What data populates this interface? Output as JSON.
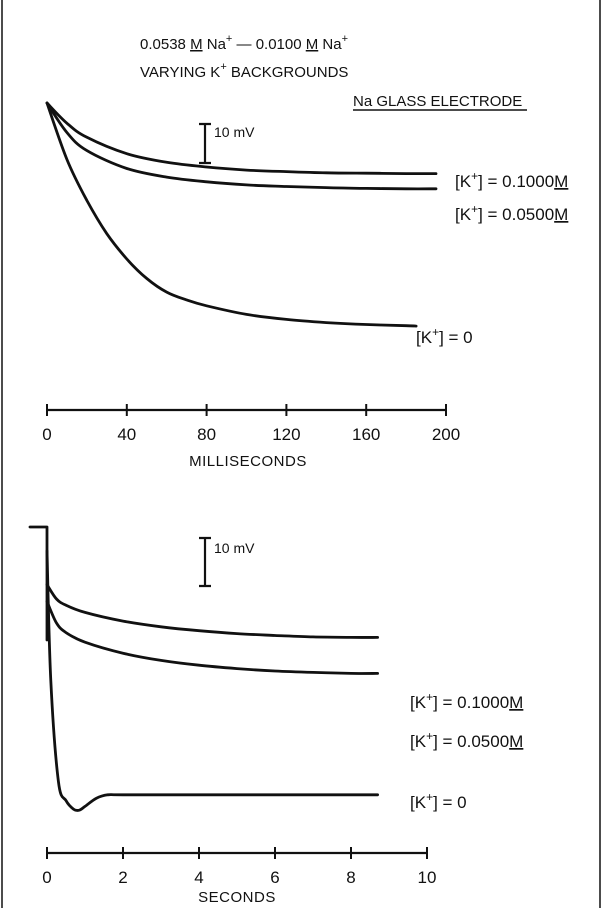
{
  "chart_data": [
    {
      "type": "line",
      "title_line1": "0.0538 M Na⁺ — 0.0100 M Na⁺",
      "title_line2": "VARYING K⁺ BACKGROUNDS",
      "annotation": "Na GLASS ELECTRODE",
      "scale_bar_label": "10 mV",
      "xlabel": "MILLISECONDS",
      "ylabel": "",
      "xlim": [
        0,
        200
      ],
      "x_ticks": [
        0,
        40,
        80,
        120,
        160,
        200
      ],
      "grid": false,
      "series": [
        {
          "name": "[K⁺] = 0.1000 M",
          "x": [
            0,
            10,
            20,
            40,
            60,
            80,
            100,
            120,
            140,
            160,
            180,
            195
          ],
          "y": [
            0,
            -5.2,
            -8.8,
            -13.0,
            -15.2,
            -16.4,
            -17.2,
            -17.6,
            -17.9,
            -18.0,
            -18.1,
            -18.1
          ]
        },
        {
          "name": "[K⁺] = 0.0500 M",
          "x": [
            0,
            10,
            20,
            40,
            60,
            80,
            100,
            120,
            140,
            160,
            180,
            195
          ],
          "y": [
            0,
            -7.6,
            -12.2,
            -16.8,
            -19.0,
            -20.2,
            -21.0,
            -21.4,
            -21.7,
            -21.9,
            -22.0,
            -22.0
          ]
        },
        {
          "name": "[K⁺] = 0",
          "x": [
            0,
            10,
            20,
            30,
            40,
            50,
            60,
            70,
            80,
            100,
            120,
            140,
            160,
            180,
            185
          ],
          "y": [
            0,
            -14.5,
            -25.0,
            -33.5,
            -40.0,
            -45.0,
            -48.5,
            -50.5,
            -52.0,
            -54.2,
            -55.5,
            -56.3,
            -56.8,
            -57.1,
            -57.2
          ]
        }
      ]
    },
    {
      "type": "line",
      "scale_bar_label": "10 mV",
      "xlabel": "SECONDS",
      "ylabel": "",
      "xlim": [
        0,
        10
      ],
      "x_ticks": [
        0,
        2,
        4,
        6,
        8,
        10
      ],
      "grid": false,
      "series": [
        {
          "name": "[K⁺] = 0.1000 M",
          "x": [
            0,
            0.25,
            0.5,
            1,
            2,
            3,
            4,
            5,
            6,
            7,
            8,
            8.7
          ],
          "y": [
            -12.0,
            -15.0,
            -16.3,
            -17.8,
            -19.6,
            -20.8,
            -21.6,
            -22.2,
            -22.6,
            -22.9,
            -23.0,
            -23.0
          ]
        },
        {
          "name": "[K⁺] = 0.0500 M",
          "x": [
            0,
            0.25,
            0.5,
            1,
            2,
            3,
            4,
            5,
            6,
            7,
            8,
            8.7
          ],
          "y": [
            -15.5,
            -20.0,
            -22.0,
            -24.0,
            -26.3,
            -27.8,
            -28.8,
            -29.5,
            -30.0,
            -30.3,
            -30.5,
            -30.5
          ]
        },
        {
          "name": "[K⁺] = 0",
          "x": [
            0,
            0.1,
            0.3,
            0.5,
            0.7,
            0.85,
            1.0,
            1.3,
            1.6,
            2,
            4,
            6,
            8,
            8.7
          ],
          "y": [
            -5.0,
            -32.0,
            -53.0,
            -57.0,
            -58.8,
            -59.0,
            -58.2,
            -56.5,
            -55.8,
            -55.8,
            -55.8,
            -55.8,
            -55.8,
            -55.8
          ]
        }
      ]
    }
  ],
  "labels": {
    "top": {
      "s1": {
        "pre": "[K",
        "post": "] = 0.1000",
        "unit": "M"
      },
      "s2": {
        "pre": "[K",
        "post": "] = 0.0500",
        "unit": "M"
      },
      "s3": {
        "pre": "[K",
        "post": "] = 0"
      }
    },
    "bottom": {
      "s1": {
        "pre": "[K",
        "post": "] = 0.1000",
        "unit": "M"
      },
      "s2": {
        "pre": "[K",
        "post": "] = 0.0500",
        "unit": "M"
      },
      "s3": {
        "pre": "[K",
        "post": "] = 0"
      }
    },
    "sup_plus": "+",
    "title1": {
      "a": "0.0538",
      "m": "M",
      "b": " Na",
      "c": " — 0.0100 ",
      "m2": "M",
      "d": " Na"
    },
    "title2": {
      "a": "VARYING K",
      "b": " BACKGROUNDS"
    }
  }
}
